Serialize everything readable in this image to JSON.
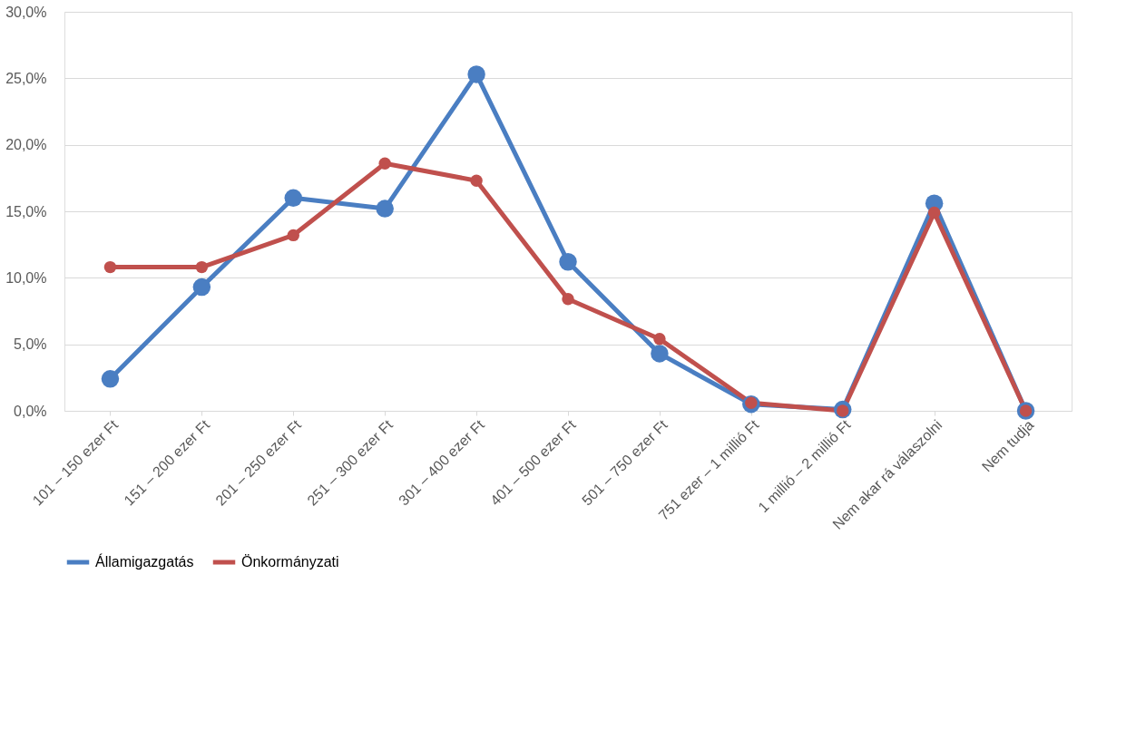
{
  "chart_data": {
    "type": "line",
    "categories": [
      "101 – 150 ezer Ft",
      "151 – 200 ezer Ft",
      "201 – 250 ezer Ft",
      "251 – 300 ezer Ft",
      "301 – 400 ezer Ft",
      "401 – 500 ezer Ft",
      "501 – 750 ezer Ft",
      "751 ezer  – 1 millió Ft",
      "1 millió – 2 millió Ft",
      "Nem akar rá válaszolni",
      "Nem tudja"
    ],
    "series": [
      {
        "name": "Államigazgatás",
        "color": "#4a7ec2",
        "values": [
          2.4,
          9.3,
          16.0,
          15.2,
          25.3,
          11.2,
          4.3,
          0.5,
          0.1,
          15.6,
          0.0
        ]
      },
      {
        "name": "Önkormányzati",
        "color": "#c0504d",
        "values": [
          10.8,
          10.8,
          13.2,
          18.6,
          17.3,
          8.4,
          5.4,
          0.6,
          0.0,
          14.9,
          0.0
        ]
      }
    ],
    "ylim": [
      0,
      30
    ],
    "yticks": [
      {
        "value": 0,
        "label": "0,0%"
      },
      {
        "value": 5,
        "label": "5,0%"
      },
      {
        "value": 10,
        "label": "10,0%"
      },
      {
        "value": 15,
        "label": "15,0%"
      },
      {
        "value": 20,
        "label": "20,0%"
      },
      {
        "value": 25,
        "label": "25,0%"
      },
      {
        "value": 30,
        "label": "30,0%"
      }
    ],
    "grid": "y",
    "legend": "bottom",
    "marker": "circle",
    "line_style": "solid"
  }
}
